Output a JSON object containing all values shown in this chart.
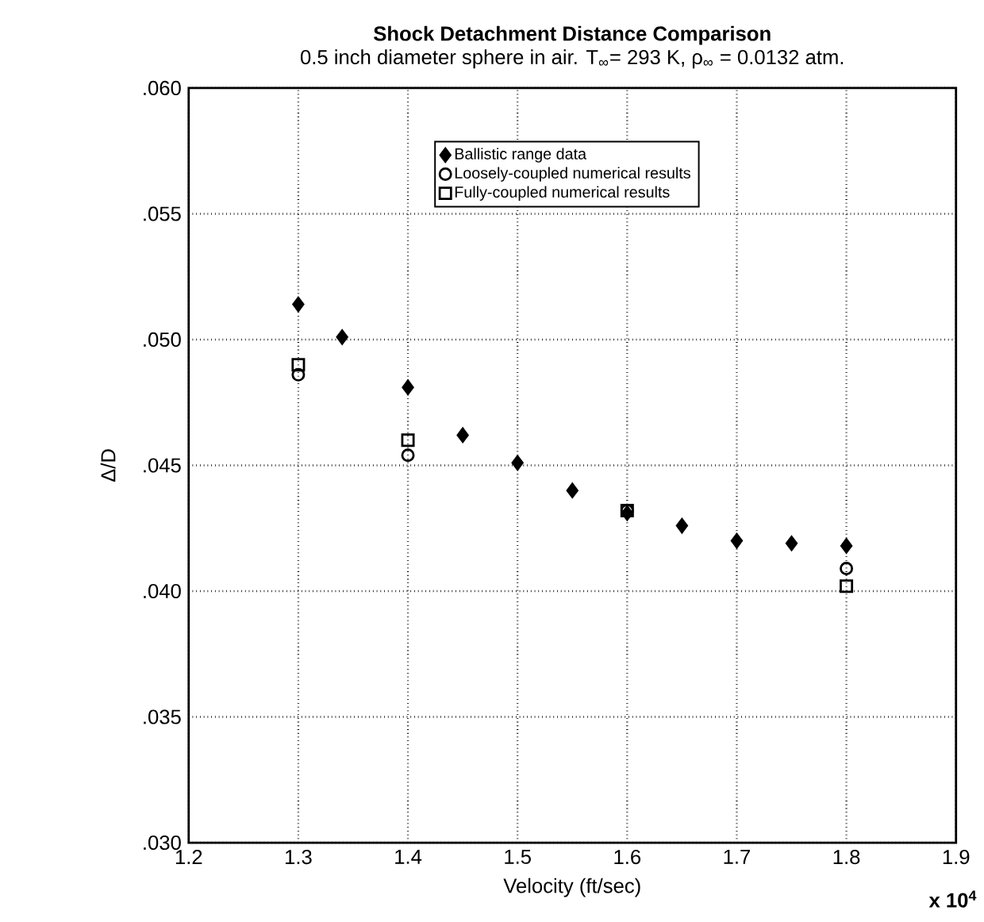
{
  "chart_data": {
    "type": "scatter",
    "title": "Shock Detachment Distance Comparison",
    "subtitle": "0.5 inch diameter sphere in air. T$_{∞}$= 293 K, ρ$_{∞}$ = 0.0132 atm.",
    "xlabel": "Velocity   (ft/sec)",
    "ylabel": "Δ/D",
    "annotations": [
      "x 10$^{4}$"
    ],
    "xlim": [
      1.2,
      1.9
    ],
    "xticks": [
      1.2,
      1.3,
      1.4,
      1.5,
      1.6,
      1.7,
      1.8,
      1.9
    ],
    "ylim": [
      0.03,
      0.06
    ],
    "yticks": [
      {
        "value": 0.03,
        "label": ".030"
      },
      {
        "value": 0.035,
        "label": ".035"
      },
      {
        "value": 0.04,
        "label": ".040"
      },
      {
        "value": 0.045,
        "label": ".045"
      },
      {
        "value": 0.05,
        "label": ".050"
      },
      {
        "value": 0.055,
        "label": ".055"
      },
      {
        "value": 0.06,
        "label": ".060"
      }
    ],
    "grid": true,
    "legend": "top right",
    "series": [
      {
        "name": "Ballistic range data",
        "color": "#000000",
        "marker": "diamond",
        "x": [
          1.3,
          1.34,
          1.4,
          1.45,
          1.5,
          1.55,
          1.6,
          1.65,
          1.7,
          1.75,
          1.8
        ],
        "values": [
          0.0514,
          0.0501,
          0.0481,
          0.0462,
          0.0451,
          0.044,
          0.0431,
          0.0426,
          0.042,
          0.0419,
          0.0418
        ]
      },
      {
        "name": "Loosely-coupled numerical results",
        "color": "#000000",
        "marker": "circle",
        "x": [
          1.3,
          1.4,
          1.6,
          1.8
        ],
        "values": [
          0.0486,
          0.0454,
          0.0432,
          0.0409
        ]
      },
      {
        "name": "Fully-coupled numerical results",
        "color": "#000000",
        "marker": "square",
        "x": [
          1.3,
          1.4,
          1.6,
          1.8
        ],
        "values": [
          0.049,
          0.046,
          0.0432,
          0.0402
        ]
      }
    ]
  }
}
